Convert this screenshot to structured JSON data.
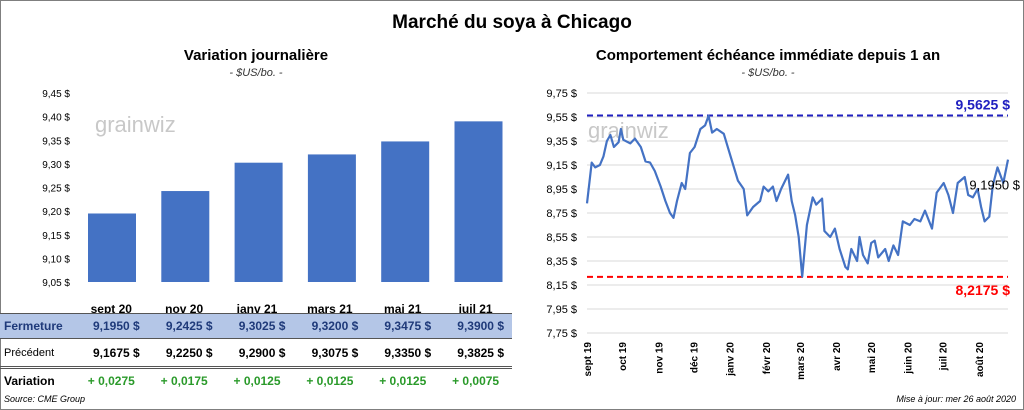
{
  "title": "Marché du soya à Chicago",
  "left": {
    "subtitle": "Variation journalière",
    "unit": "- $US/bo. -",
    "watermark": "grainwiz"
  },
  "right": {
    "subtitle": "Comportement  échéance immédiate depuis 1 an",
    "unit": "- $US/bo. -",
    "watermark": "grainwiz"
  },
  "table": {
    "columns": [
      "sept 20",
      "nov 20",
      "janv 21",
      "mars 21",
      "mai 21",
      "juil 21"
    ],
    "rows": [
      {
        "label": "Fermeture",
        "values": [
          "9,1950  $",
          "9,2425  $",
          "9,3025  $",
          "9,3200  $",
          "9,3475  $",
          "9,3900  $"
        ]
      },
      {
        "label": "Précédent",
        "values": [
          "9,1675  $",
          "9,2250  $",
          "9,2900  $",
          "9,3075  $",
          "9,3350  $",
          "9,3825  $"
        ]
      },
      {
        "label": "Variation",
        "values": [
          "+ 0,0275",
          "+ 0,0175",
          "+ 0,0125",
          "+ 0,0125",
          "+ 0,0125",
          "+ 0,0075"
        ]
      }
    ]
  },
  "source": "Source: CME Group",
  "updated": "Mise à jour: mer 26 août 2020",
  "chart_data": [
    {
      "type": "bar",
      "categories": [
        "sept 20",
        "nov 20",
        "janv 21",
        "mars 21",
        "mai 21",
        "juil 21"
      ],
      "values": [
        9.195,
        9.2425,
        9.3025,
        9.32,
        9.3475,
        9.39
      ],
      "ylim": [
        9.05,
        9.45
      ],
      "yticks": [
        "9,05 $",
        "9,10 $",
        "9,15 $",
        "9,20 $",
        "9,25 $",
        "9,30 $",
        "9,35 $",
        "9,40 $",
        "9,45 $"
      ],
      "color": "#4472c4",
      "grid": false
    },
    {
      "type": "line",
      "ylim": [
        7.75,
        9.75
      ],
      "yticks": [
        "7,75 $",
        "7,95 $",
        "8,15 $",
        "8,35 $",
        "8,55 $",
        "8,75 $",
        "8,95 $",
        "9,15 $",
        "9,35 $",
        "9,55 $",
        "9,75 $"
      ],
      "xticks": [
        {
          "date": "2019-09-01",
          "label": "sept 19"
        },
        {
          "date": "2019-10-01",
          "label": "oct 19"
        },
        {
          "date": "2019-11-01",
          "label": "nov 19"
        },
        {
          "date": "2019-12-01",
          "label": "déc 19"
        },
        {
          "date": "2020-01-01",
          "label": "janv 20"
        },
        {
          "date": "2020-02-01",
          "label": "févr 20"
        },
        {
          "date": "2020-03-01",
          "label": "mars 20"
        },
        {
          "date": "2020-04-01",
          "label": "avr 20"
        },
        {
          "date": "2020-05-01",
          "label": "mai 20"
        },
        {
          "date": "2020-06-01",
          "label": "juin 20"
        },
        {
          "date": "2020-07-01",
          "label": "juil 20"
        },
        {
          "date": "2020-08-01",
          "label": "août 20"
        }
      ],
      "xlim": [
        "2019-09-01",
        "2020-08-26"
      ],
      "grid": true,
      "color": "#4472c4",
      "high": {
        "value": 9.5625,
        "label": "9,5625  $",
        "color": "#2020c0"
      },
      "low": {
        "value": 8.2175,
        "label": "8,2175  $",
        "color": "#ff0000"
      },
      "last": {
        "value": 9.195,
        "label": "9,1950 $"
      },
      "points": [
        [
          "2019-09-01",
          8.83
        ],
        [
          "2019-09-05",
          9.17
        ],
        [
          "2019-09-08",
          9.13
        ],
        [
          "2019-09-12",
          9.15
        ],
        [
          "2019-09-15",
          9.22
        ],
        [
          "2019-09-18",
          9.35
        ],
        [
          "2019-09-21",
          9.4
        ],
        [
          "2019-09-24",
          9.3
        ],
        [
          "2019-09-28",
          9.34
        ],
        [
          "2019-09-30",
          9.45
        ],
        [
          "2019-10-02",
          9.36
        ],
        [
          "2019-10-08",
          9.33
        ],
        [
          "2019-10-12",
          9.37
        ],
        [
          "2019-10-17",
          9.3
        ],
        [
          "2019-10-21",
          9.18
        ],
        [
          "2019-10-25",
          9.17
        ],
        [
          "2019-10-29",
          9.1
        ],
        [
          "2019-11-03",
          8.97
        ],
        [
          "2019-11-07",
          8.85
        ],
        [
          "2019-11-11",
          8.75
        ],
        [
          "2019-11-14",
          8.71
        ],
        [
          "2019-11-17",
          8.85
        ],
        [
          "2019-11-21",
          9.0
        ],
        [
          "2019-11-24",
          8.95
        ],
        [
          "2019-11-28",
          9.25
        ],
        [
          "2019-12-02",
          9.3
        ],
        [
          "2019-12-07",
          9.45
        ],
        [
          "2019-12-11",
          9.48
        ],
        [
          "2019-12-14",
          9.56
        ],
        [
          "2019-12-17",
          9.42
        ],
        [
          "2019-12-21",
          9.45
        ],
        [
          "2019-12-27",
          9.41
        ],
        [
          "2019-12-31",
          9.28
        ],
        [
          "2020-01-04",
          9.15
        ],
        [
          "2020-01-08",
          9.02
        ],
        [
          "2020-01-13",
          8.95
        ],
        [
          "2020-01-16",
          8.73
        ],
        [
          "2020-01-21",
          8.8
        ],
        [
          "2020-01-27",
          8.85
        ],
        [
          "2020-01-30",
          8.97
        ],
        [
          "2020-02-03",
          8.93
        ],
        [
          "2020-02-07",
          8.97
        ],
        [
          "2020-02-10",
          8.85
        ],
        [
          "2020-02-14",
          8.95
        ],
        [
          "2020-02-20",
          9.07
        ],
        [
          "2020-02-23",
          8.85
        ],
        [
          "2020-02-26",
          8.73
        ],
        [
          "2020-02-29",
          8.55
        ],
        [
          "2020-03-03",
          8.22
        ],
        [
          "2020-03-07",
          8.65
        ],
        [
          "2020-03-12",
          8.88
        ],
        [
          "2020-03-15",
          8.82
        ],
        [
          "2020-03-20",
          8.87
        ],
        [
          "2020-03-22",
          8.6
        ],
        [
          "2020-03-27",
          8.55
        ],
        [
          "2020-03-31",
          8.62
        ],
        [
          "2020-04-04",
          8.45
        ],
        [
          "2020-04-09",
          8.3
        ],
        [
          "2020-04-11",
          8.28
        ],
        [
          "2020-04-14",
          8.45
        ],
        [
          "2020-04-19",
          8.35
        ],
        [
          "2020-04-21",
          8.55
        ],
        [
          "2020-04-24",
          8.4
        ],
        [
          "2020-04-28",
          8.33
        ],
        [
          "2020-05-01",
          8.5
        ],
        [
          "2020-05-04",
          8.52
        ],
        [
          "2020-05-07",
          8.38
        ],
        [
          "2020-05-13",
          8.45
        ],
        [
          "2020-05-16",
          8.35
        ],
        [
          "2020-05-20",
          8.48
        ],
        [
          "2020-05-24",
          8.4
        ],
        [
          "2020-05-28",
          8.68
        ],
        [
          "2020-06-03",
          8.65
        ],
        [
          "2020-06-07",
          8.7
        ],
        [
          "2020-06-12",
          8.68
        ],
        [
          "2020-06-16",
          8.77
        ],
        [
          "2020-06-22",
          8.62
        ],
        [
          "2020-06-26",
          8.92
        ],
        [
          "2020-07-02",
          9.0
        ],
        [
          "2020-07-06",
          8.9
        ],
        [
          "2020-07-10",
          8.75
        ],
        [
          "2020-07-14",
          9.0
        ],
        [
          "2020-07-20",
          9.05
        ],
        [
          "2020-07-23",
          8.9
        ],
        [
          "2020-07-27",
          8.88
        ],
        [
          "2020-07-31",
          8.95
        ],
        [
          "2020-08-03",
          8.8
        ],
        [
          "2020-08-06",
          8.68
        ],
        [
          "2020-08-10",
          8.72
        ],
        [
          "2020-08-13",
          8.98
        ],
        [
          "2020-08-17",
          9.13
        ],
        [
          "2020-08-22",
          9.0
        ],
        [
          "2020-08-26",
          9.195
        ]
      ]
    }
  ]
}
